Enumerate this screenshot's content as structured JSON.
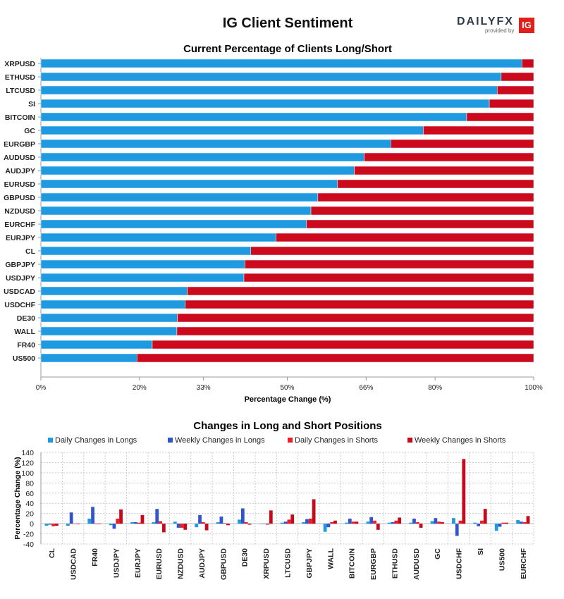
{
  "header": {
    "title": "IG Client Sentiment",
    "logo_brand": "DAILYFX",
    "logo_sub": "provided by",
    "logo_badge": "IG"
  },
  "colors": {
    "long": "#1f9ae0",
    "short": "#cc0a1e",
    "daily_long": "#1f9ae0",
    "weekly_long": "#3355cc",
    "daily_short": "#ee1c25",
    "weekly_short": "#c40a1c"
  },
  "chart_data": [
    {
      "type": "bar",
      "orientation": "horizontal-stacked",
      "title": "Current Percentage of Clients Long/Short",
      "xlabel": "Percentage Change (%)",
      "xlim": [
        0,
        100
      ],
      "ticks": [
        "0%",
        "20%",
        "33%",
        "50%",
        "66%",
        "80%",
        "100%"
      ],
      "tick_values": [
        0,
        20,
        33,
        50,
        66,
        80,
        100
      ],
      "categories": [
        "XRPUSD",
        "ETHUSD",
        "LTCUSD",
        "SI",
        "BITCOIN",
        "GC",
        "EURGBP",
        "AUDUSD",
        "AUDJPY",
        "EURUSD",
        "GBPUSD",
        "NZDUSD",
        "EURCHF",
        "EURJPY",
        "CL",
        "GBPJPY",
        "USDJPY",
        "USDCAD",
        "USDCHF",
        "DE30",
        "WALL",
        "FR40",
        "US500"
      ],
      "series": [
        {
          "name": "Long",
          "values": [
            97.6,
            93.4,
            92.6,
            91.0,
            86.4,
            77.6,
            71.0,
            65.6,
            63.6,
            60.2,
            56.2,
            54.8,
            53.9,
            47.7,
            42.6,
            41.4,
            41.2,
            29.7,
            29.3,
            27.7,
            27.6,
            22.6,
            19.5
          ]
        },
        {
          "name": "Short",
          "values": [
            2.4,
            6.6,
            7.4,
            9.0,
            13.6,
            22.4,
            29.0,
            34.4,
            36.4,
            39.8,
            43.8,
            45.2,
            46.1,
            52.3,
            57.4,
            58.6,
            58.8,
            70.3,
            70.7,
            72.3,
            72.4,
            77.4,
            80.5
          ]
        }
      ]
    },
    {
      "type": "bar",
      "orientation": "vertical-grouped",
      "title": "Changes in Long and Short Positions",
      "ylabel": "Percentage Change (%)",
      "ylim": [
        -40,
        140
      ],
      "yticks": [
        -40,
        -20,
        0,
        20,
        40,
        60,
        80,
        100,
        120,
        140
      ],
      "categories": [
        "CL",
        "USDCAD",
        "FR40",
        "USDJPY",
        "EURJPY",
        "EURUSD",
        "NZDUSD",
        "AUDJPY",
        "GBPUSD",
        "DE30",
        "XRPUSD",
        "LTCUSD",
        "GBPJPY",
        "WALL",
        "BITCOIN",
        "EURGBP",
        "ETHUSD",
        "AUDUSD",
        "GC",
        "USDCHF",
        "SI",
        "US500",
        "EURCHF"
      ],
      "series": [
        {
          "name": "Daily Changes in Longs",
          "values": [
            -4,
            -4,
            10,
            -3,
            3,
            3,
            4,
            -7,
            3,
            8,
            0,
            2,
            3,
            -16,
            2,
            4,
            2,
            2,
            5,
            11,
            2,
            -14,
            7
          ]
        },
        {
          "name": "Weekly Changes in Longs",
          "values": [
            -2,
            22,
            33,
            -10,
            3,
            29,
            -8,
            17,
            14,
            30,
            0,
            4,
            9,
            -7,
            10,
            13,
            3,
            10,
            11,
            -24,
            -5,
            -6,
            4
          ]
        },
        {
          "name": "Daily Changes in Shorts",
          "values": [
            -5,
            0,
            -1,
            10,
            2,
            5,
            -8,
            3,
            1,
            3,
            -2,
            8,
            10,
            3,
            4,
            6,
            6,
            3,
            4,
            6,
            6,
            2,
            3
          ]
        },
        {
          "name": "Weekly Changes in Shorts",
          "values": [
            -4,
            -1,
            -1,
            28,
            17,
            -17,
            -12,
            -13,
            -3,
            -2,
            26,
            18,
            48,
            6,
            4,
            -12,
            12,
            -8,
            3,
            127,
            29,
            2,
            15
          ]
        }
      ]
    }
  ]
}
